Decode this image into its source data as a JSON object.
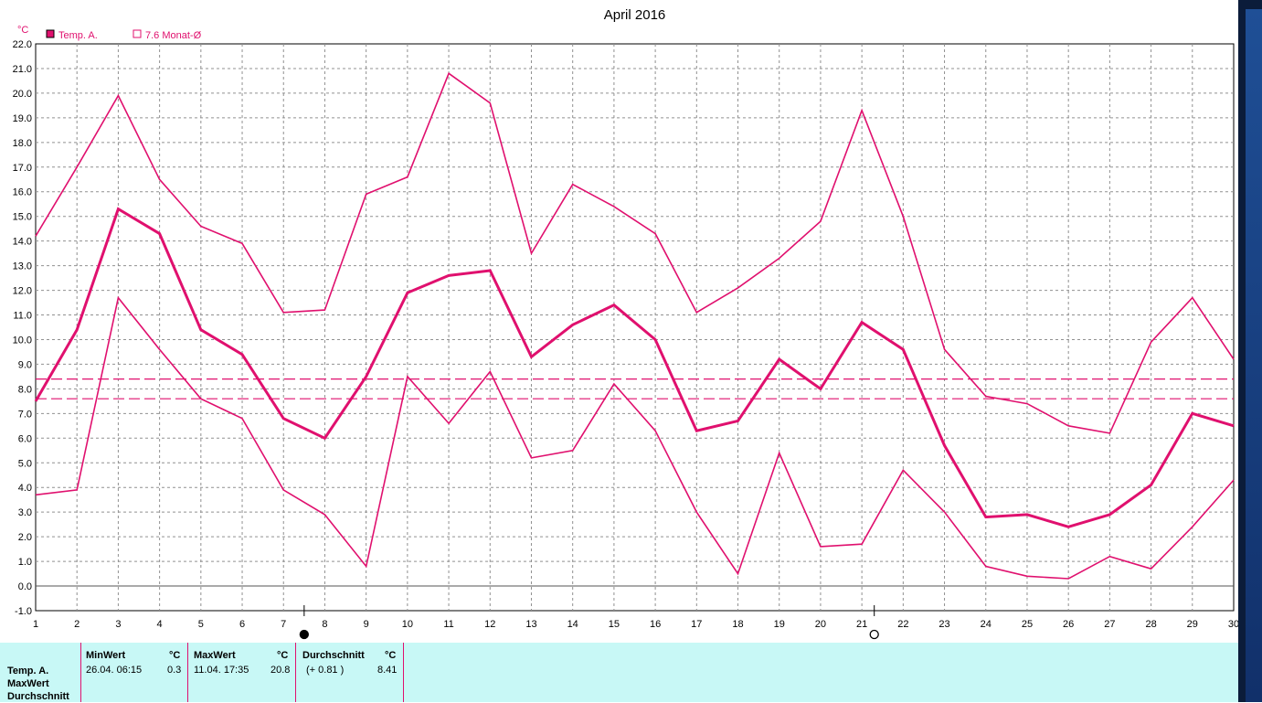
{
  "chart_data": {
    "type": "line",
    "title": "April 2016",
    "y_unit": "°C",
    "x": [
      1,
      2,
      3,
      4,
      5,
      6,
      7,
      8,
      9,
      10,
      11,
      12,
      13,
      14,
      15,
      16,
      17,
      18,
      19,
      20,
      21,
      22,
      23,
      24,
      25,
      26,
      27,
      28,
      29,
      30
    ],
    "ylim": [
      -1.0,
      22.0
    ],
    "y_ticks": [
      "-1.0",
      "0.0",
      "1.0",
      "2.0",
      "3.0",
      "4.0",
      "5.0",
      "6.0",
      "7.0",
      "8.0",
      "9.0",
      "10.0",
      "11.0",
      "12.0",
      "13.0",
      "14.0",
      "15.0",
      "16.0",
      "17.0",
      "18.0",
      "19.0",
      "20.0",
      "21.0",
      "22.0"
    ],
    "grid": true,
    "legend": [
      {
        "label": "Temp. A.",
        "filled": true
      },
      {
        "label": "7.6 Monat-Ø",
        "filled": false
      }
    ],
    "series": [
      {
        "role": "max",
        "values": [
          14.2,
          17.0,
          19.9,
          16.5,
          14.6,
          13.9,
          11.1,
          11.2,
          15.9,
          16.6,
          20.8,
          19.6,
          13.5,
          16.3,
          15.4,
          14.3,
          11.1,
          12.1,
          13.3,
          14.8,
          19.3,
          15.0,
          9.6,
          7.7,
          7.4,
          6.5,
          6.2,
          9.9,
          11.7,
          9.2
        ]
      },
      {
        "role": "mean",
        "values": [
          7.5,
          10.4,
          15.3,
          14.3,
          10.4,
          9.4,
          6.8,
          6.0,
          8.5,
          11.9,
          12.6,
          12.8,
          9.3,
          10.6,
          11.4,
          10.0,
          6.3,
          6.7,
          9.2,
          8.0,
          10.7,
          9.6,
          5.7,
          2.8,
          2.9,
          2.4,
          2.9,
          4.1,
          7.0,
          6.5
        ]
      },
      {
        "role": "min",
        "values": [
          3.7,
          3.9,
          11.7,
          9.6,
          7.6,
          6.8,
          3.9,
          2.9,
          0.8,
          8.5,
          6.6,
          8.7,
          5.2,
          5.5,
          8.2,
          6.3,
          3.0,
          0.5,
          5.4,
          1.6,
          1.7,
          4.7,
          3.0,
          0.8,
          0.4,
          0.3,
          1.2,
          0.7,
          2.4,
          4.3
        ]
      }
    ],
    "reference_lines": [
      8.4,
      7.6
    ],
    "moon_phase_markers": [
      {
        "day": 7.5,
        "phase": "new",
        "icon": "new-moon-icon"
      },
      {
        "day": 21.3,
        "phase": "full",
        "icon": "full-moon-icon"
      }
    ],
    "colors": {
      "line": "#e0106e",
      "grid": "#909090",
      "panel": "#c8f8f6",
      "frame": "#0b1c3a"
    }
  },
  "stats": {
    "row_labels": [
      "Temp. A.",
      "MaxWert",
      "Durchschnitt"
    ],
    "min": {
      "header": "MinWert",
      "unit": "°C",
      "date": "26.04.  06:15",
      "value": "0.3"
    },
    "max": {
      "header": "MaxWert",
      "unit": "°C",
      "date": "11.04.  17:35",
      "value": "20.8"
    },
    "avg": {
      "header": "Durchschnitt",
      "unit": "°C",
      "delta": "(+ 0.81 )",
      "value": "8.41"
    }
  }
}
